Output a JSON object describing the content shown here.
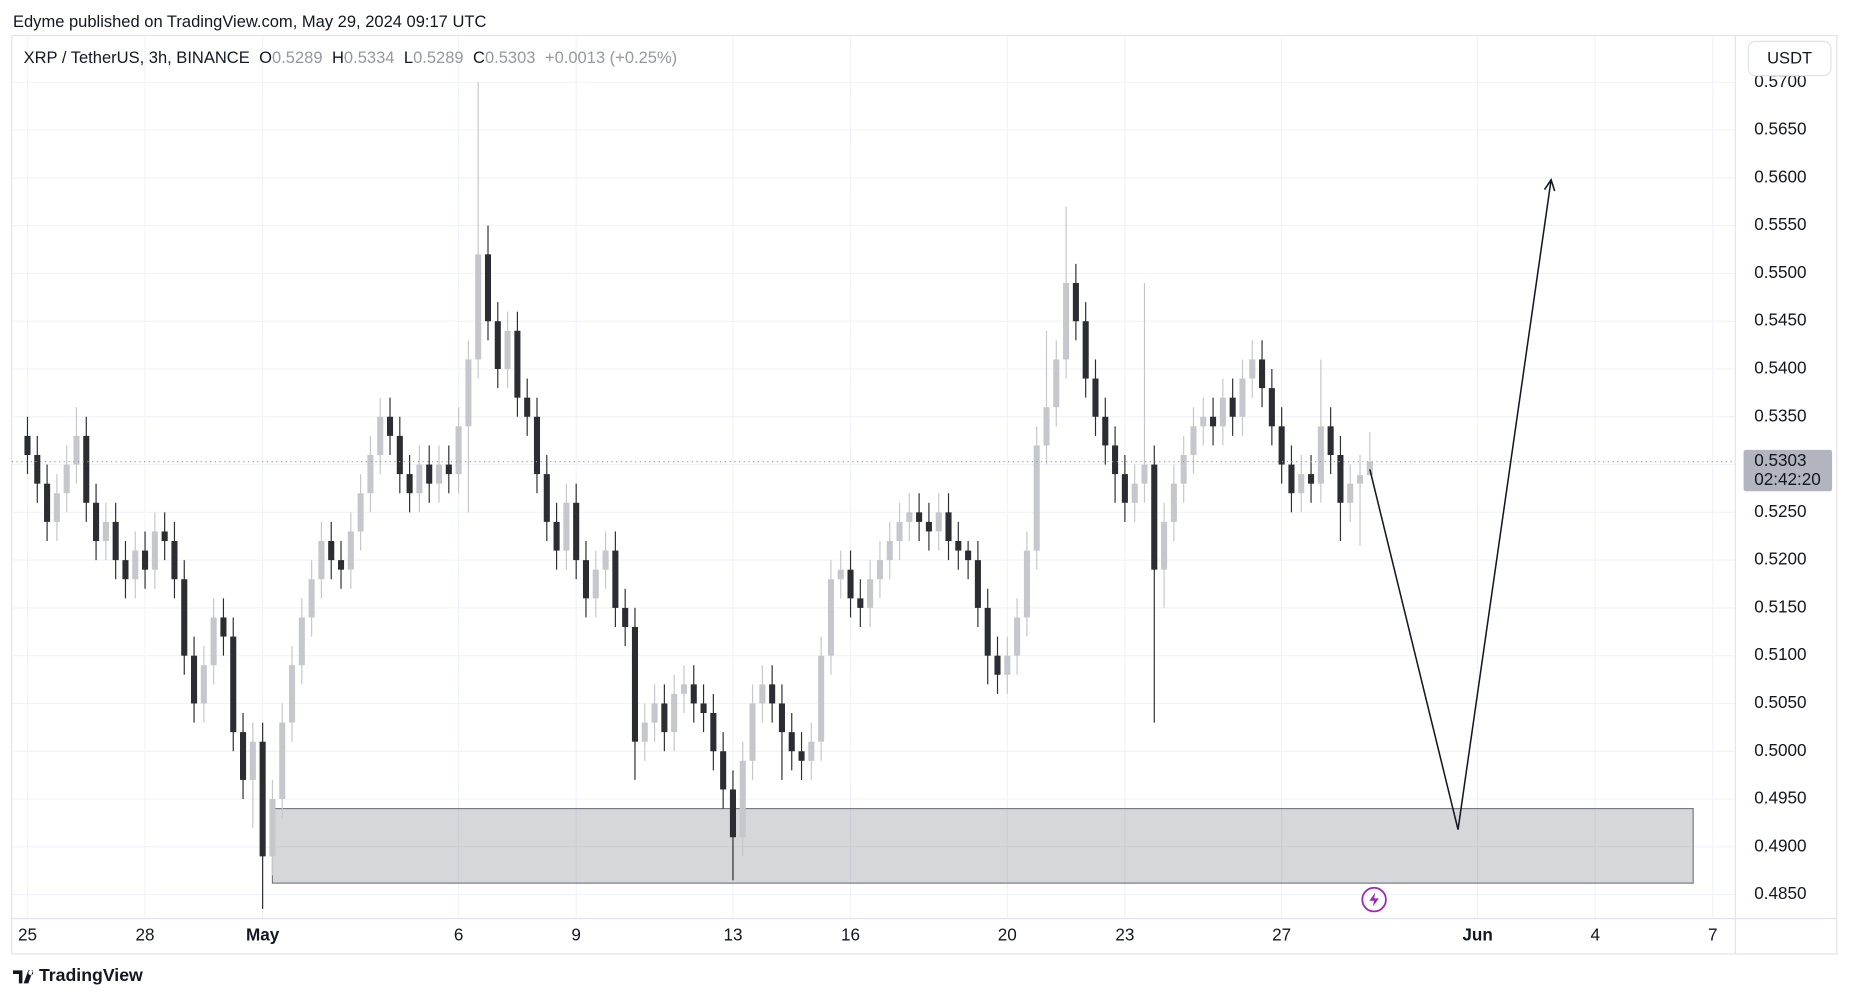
{
  "header": "Edyme published on TradingView.com, May 29, 2024 09:17 UTC",
  "footer": "TradingView",
  "chart_data": {
    "type": "candlestick",
    "title": "XRP / TetherUS, 3h, BINANCE",
    "ohlc_labels": [
      "O",
      "H",
      "L",
      "C"
    ],
    "change": "+0.0013 (+0.25%)",
    "currency": "USDT",
    "countdown": "02:42:20",
    "up_color": "#c5c7cc",
    "down_color": "#2b2d33",
    "grid": true,
    "xlim": [
      -1.6,
      174.3
    ],
    "xticks": [
      {
        "value": 0,
        "label": "25"
      },
      {
        "value": 12,
        "label": "28"
      },
      {
        "value": 24,
        "label": "May"
      },
      {
        "value": 44,
        "label": "6"
      },
      {
        "value": 56,
        "label": "9"
      },
      {
        "value": 72,
        "label": "13"
      },
      {
        "value": 84,
        "label": "16"
      },
      {
        "value": 100,
        "label": "20"
      },
      {
        "value": 112,
        "label": "23"
      },
      {
        "value": 128,
        "label": "27"
      },
      {
        "value": 148,
        "label": "Jun"
      },
      {
        "value": 160,
        "label": "4"
      },
      {
        "value": 172,
        "label": "7"
      }
    ],
    "ylim": [
      0.4825,
      0.5749
    ],
    "yticks": [
      {
        "value": 0.485,
        "label": "0.4850"
      },
      {
        "value": 0.49,
        "label": "0.4900"
      },
      {
        "value": 0.495,
        "label": "0.4950"
      },
      {
        "value": 0.5,
        "label": "0.5000"
      },
      {
        "value": 0.505,
        "label": "0.5050"
      },
      {
        "value": 0.51,
        "label": "0.5100"
      },
      {
        "value": 0.515,
        "label": "0.5150"
      },
      {
        "value": 0.52,
        "label": "0.5200"
      },
      {
        "value": 0.525,
        "label": "0.5250"
      },
      {
        "value": 0.53,
        "label": "0.5300"
      },
      {
        "value": 0.535,
        "label": "0.5350"
      },
      {
        "value": 0.54,
        "label": "0.5400"
      },
      {
        "value": 0.545,
        "label": "0.5450"
      },
      {
        "value": 0.55,
        "label": "0.5500"
      },
      {
        "value": 0.555,
        "label": "0.5550"
      },
      {
        "value": 0.56,
        "label": "0.5600"
      },
      {
        "value": 0.565,
        "label": "0.5650"
      },
      {
        "value": 0.57,
        "label": "0.5700"
      }
    ],
    "open": [
      0.533,
      0.531,
      0.528,
      0.524,
      0.527,
      0.53,
      0.533,
      0.526,
      0.522,
      0.524,
      0.52,
      0.518,
      0.521,
      0.519,
      0.523,
      0.522,
      0.518,
      0.51,
      0.505,
      0.509,
      0.514,
      0.512,
      0.502,
      0.497,
      0.501,
      0.489,
      0.495,
      0.503,
      0.509,
      0.514,
      0.518,
      0.522,
      0.52,
      0.519,
      0.523,
      0.527,
      0.531,
      0.535,
      0.533,
      0.529,
      0.527,
      0.53,
      0.528,
      0.53,
      0.529,
      0.534,
      0.541,
      0.552,
      0.545,
      0.54,
      0.544,
      0.537,
      0.535,
      0.529,
      0.524,
      0.521,
      0.526,
      0.52,
      0.516,
      0.519,
      0.521,
      0.515,
      0.513,
      0.501,
      0.503,
      0.505,
      0.502,
      0.506,
      0.507,
      0.505,
      0.504,
      0.5,
      0.496,
      0.491,
      0.499,
      0.505,
      0.507,
      0.505,
      0.502,
      0.5,
      0.499,
      0.501,
      0.51,
      0.518,
      0.519,
      0.516,
      0.515,
      0.518,
      0.52,
      0.522,
      0.524,
      0.525,
      0.524,
      0.523,
      0.525,
      0.522,
      0.521,
      0.52,
      0.515,
      0.51,
      0.508,
      0.51,
      0.514,
      0.521,
      0.532,
      0.536,
      0.541,
      0.549,
      0.545,
      0.539,
      0.535,
      0.532,
      0.529,
      0.526,
      0.528,
      0.53,
      0.519,
      0.524,
      0.528,
      0.531,
      0.534,
      0.535,
      0.534,
      0.537,
      0.535,
      0.539,
      0.541,
      0.538,
      0.534,
      0.53,
      0.527,
      0.529,
      0.528,
      0.534,
      0.531,
      0.526,
      0.528,
      0.5289
    ],
    "high": [
      0.535,
      0.533,
      0.53,
      0.529,
      0.532,
      0.536,
      0.535,
      0.528,
      0.526,
      0.526,
      0.522,
      0.523,
      0.523,
      0.525,
      0.525,
      0.524,
      0.52,
      0.512,
      0.511,
      0.516,
      0.516,
      0.514,
      0.504,
      0.503,
      0.503,
      0.497,
      0.505,
      0.511,
      0.516,
      0.52,
      0.524,
      0.524,
      0.522,
      0.525,
      0.529,
      0.533,
      0.537,
      0.537,
      0.535,
      0.531,
      0.532,
      0.532,
      0.532,
      0.532,
      0.536,
      0.543,
      0.57,
      0.555,
      0.547,
      0.546,
      0.546,
      0.539,
      0.537,
      0.531,
      0.526,
      0.528,
      0.528,
      0.522,
      0.521,
      0.523,
      0.523,
      0.517,
      0.515,
      0.505,
      0.507,
      0.507,
      0.508,
      0.509,
      0.509,
      0.507,
      0.506,
      0.502,
      0.498,
      0.501,
      0.507,
      0.509,
      0.509,
      0.507,
      0.504,
      0.502,
      0.503,
      0.512,
      0.52,
      0.521,
      0.521,
      0.518,
      0.52,
      0.522,
      0.524,
      0.526,
      0.527,
      0.527,
      0.526,
      0.527,
      0.527,
      0.524,
      0.522,
      0.522,
      0.517,
      0.512,
      0.512,
      0.516,
      0.523,
      0.534,
      0.544,
      0.543,
      0.557,
      0.551,
      0.547,
      0.541,
      0.537,
      0.534,
      0.531,
      0.53,
      0.549,
      0.532,
      0.526,
      0.53,
      0.533,
      0.536,
      0.537,
      0.537,
      0.539,
      0.539,
      0.541,
      0.543,
      0.543,
      0.54,
      0.536,
      0.532,
      0.531,
      0.531,
      0.541,
      0.536,
      0.533,
      0.53,
      0.531,
      0.5334
    ],
    "low": [
      0.529,
      0.526,
      0.522,
      0.522,
      0.525,
      0.528,
      0.524,
      0.52,
      0.52,
      0.518,
      0.516,
      0.516,
      0.517,
      0.517,
      0.52,
      0.516,
      0.508,
      0.503,
      0.503,
      0.507,
      0.51,
      0.5,
      0.495,
      0.492,
      0.4835,
      0.487,
      0.493,
      0.501,
      0.507,
      0.512,
      0.516,
      0.518,
      0.517,
      0.517,
      0.521,
      0.525,
      0.529,
      0.531,
      0.527,
      0.525,
      0.525,
      0.526,
      0.526,
      0.527,
      0.527,
      0.525,
      0.539,
      0.543,
      0.538,
      0.538,
      0.535,
      0.533,
      0.527,
      0.522,
      0.519,
      0.519,
      0.518,
      0.514,
      0.514,
      0.517,
      0.513,
      0.511,
      0.497,
      0.499,
      0.501,
      0.5,
      0.5,
      0.504,
      0.503,
      0.502,
      0.498,
      0.494,
      0.4865,
      0.489,
      0.497,
      0.503,
      0.503,
      0.497,
      0.498,
      0.497,
      0.497,
      0.499,
      0.508,
      0.516,
      0.514,
      0.513,
      0.513,
      0.516,
      0.518,
      0.52,
      0.522,
      0.522,
      0.521,
      0.521,
      0.52,
      0.519,
      0.518,
      0.513,
      0.507,
      0.506,
      0.506,
      0.508,
      0.512,
      0.519,
      0.53,
      0.534,
      0.539,
      0.543,
      0.537,
      0.533,
      0.53,
      0.526,
      0.524,
      0.524,
      0.526,
      0.503,
      0.515,
      0.522,
      0.526,
      0.529,
      0.532,
      0.532,
      0.532,
      0.533,
      0.533,
      0.537,
      0.536,
      0.532,
      0.528,
      0.525,
      0.525,
      0.526,
      0.526,
      0.529,
      0.522,
      0.524,
      0.5215,
      0.5289
    ],
    "close": [
      0.531,
      0.528,
      0.524,
      0.527,
      0.53,
      0.533,
      0.526,
      0.522,
      0.524,
      0.52,
      0.518,
      0.521,
      0.519,
      0.523,
      0.522,
      0.518,
      0.51,
      0.505,
      0.509,
      0.514,
      0.512,
      0.502,
      0.497,
      0.501,
      0.489,
      0.495,
      0.503,
      0.509,
      0.514,
      0.518,
      0.522,
      0.52,
      0.519,
      0.523,
      0.527,
      0.531,
      0.535,
      0.533,
      0.529,
      0.527,
      0.53,
      0.528,
      0.53,
      0.529,
      0.534,
      0.541,
      0.552,
      0.545,
      0.54,
      0.544,
      0.537,
      0.535,
      0.529,
      0.524,
      0.521,
      0.526,
      0.52,
      0.516,
      0.519,
      0.521,
      0.515,
      0.513,
      0.501,
      0.503,
      0.505,
      0.502,
      0.506,
      0.507,
      0.505,
      0.504,
      0.5,
      0.496,
      0.491,
      0.499,
      0.505,
      0.507,
      0.505,
      0.502,
      0.5,
      0.499,
      0.501,
      0.51,
      0.518,
      0.519,
      0.516,
      0.515,
      0.518,
      0.52,
      0.522,
      0.524,
      0.525,
      0.524,
      0.523,
      0.525,
      0.522,
      0.521,
      0.52,
      0.515,
      0.51,
      0.508,
      0.51,
      0.514,
      0.521,
      0.532,
      0.536,
      0.541,
      0.549,
      0.545,
      0.539,
      0.535,
      0.532,
      0.529,
      0.526,
      0.528,
      0.53,
      0.519,
      0.524,
      0.528,
      0.531,
      0.534,
      0.535,
      0.534,
      0.537,
      0.535,
      0.539,
      0.541,
      0.538,
      0.534,
      0.53,
      0.527,
      0.529,
      0.528,
      0.534,
      0.531,
      0.526,
      0.528,
      0.5289,
      0.5303
    ],
    "zone": {
      "x": [
        25,
        170
      ],
      "y": [
        0.4862,
        0.494
      ]
    },
    "drawing": {
      "x": [
        137,
        146,
        155.5
      ],
      "y": [
        0.5295,
        0.4918,
        0.5598
      ]
    }
  }
}
